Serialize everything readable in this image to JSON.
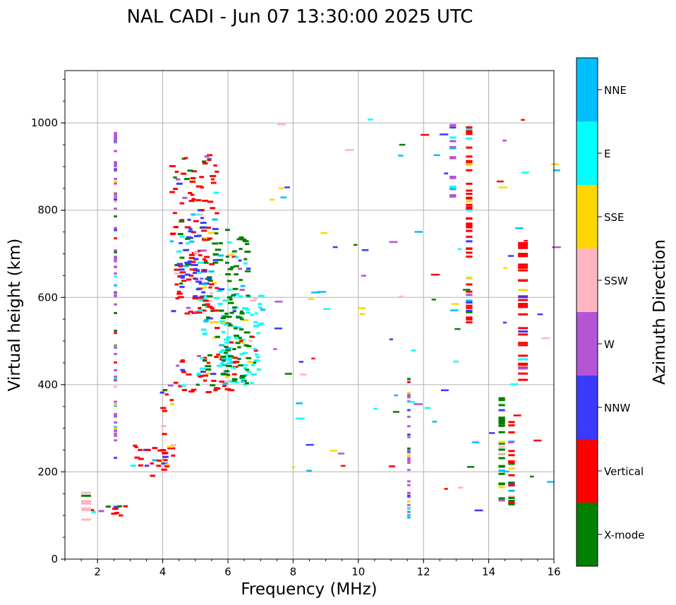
{
  "chart_data": {
    "type": "scatter",
    "title": "NAL CADI - Jun 07 13:30:00 2025 UTC",
    "xlabel": "Frequency (MHz)",
    "ylabel": "Virtual height (km)",
    "xlim": [
      1,
      16
    ],
    "ylim": [
      0,
      1120
    ],
    "xticks": [
      2,
      4,
      6,
      8,
      10,
      12,
      14,
      16
    ],
    "yticks": [
      0,
      200,
      400,
      600,
      800,
      1000
    ],
    "grid": true,
    "colorbar": {
      "label": "Azimuth Direction",
      "categories": [
        {
          "name": "X-mode",
          "color": "#008000"
        },
        {
          "name": "Vertical",
          "color": "#ff0000"
        },
        {
          "name": "NNW",
          "color": "#3a3aff"
        },
        {
          "name": "W",
          "color": "#b455d6"
        },
        {
          "name": "SSW",
          "color": "#ffb6c1"
        },
        {
          "name": "SSE",
          "color": "#ffd700"
        },
        {
          "name": "E",
          "color": "#00ffff"
        },
        {
          "name": "NNE",
          "color": "#00bfff"
        }
      ]
    },
    "echo_regions": [
      {
        "name": "E-layer trace",
        "f": [
          1.5,
          2.9
        ],
        "h": [
          95,
          125
        ],
        "direction": "Vertical"
      },
      {
        "name": "Es / low echoes",
        "f": [
          1.5,
          1.8
        ],
        "h": [
          90,
          180
        ],
        "direction": "SSW"
      },
      {
        "name": "F-layer low trace",
        "f": [
          3.0,
          4.0
        ],
        "h": [
          190,
          265
        ],
        "direction": "Vertical"
      },
      {
        "name": "F-layer rise",
        "f": [
          3.8,
          4.3
        ],
        "h": [
          200,
          400
        ],
        "direction": "Vertical"
      },
      {
        "name": "F-layer main trace",
        "f": [
          4.3,
          6.2
        ],
        "h": [
          380,
          470
        ],
        "direction": "Vertical"
      },
      {
        "name": "O-mode upper",
        "f": [
          5.0,
          7.0
        ],
        "h": [
          400,
          620
        ],
        "direction": "E"
      },
      {
        "name": "X-mode trace",
        "f": [
          5.2,
          6.6
        ],
        "h": [
          390,
          760
        ],
        "direction": "X-mode"
      },
      {
        "name": "Spread F",
        "f": [
          4.2,
          5.6
        ],
        "h": [
          560,
          930
        ],
        "direction": "Vertical"
      },
      {
        "name": "NNW spread",
        "f": [
          4.4,
          5.4
        ],
        "h": [
          600,
          800
        ],
        "direction": "NNW"
      },
      {
        "name": "Interference column",
        "f": [
          2.5,
          2.6
        ],
        "h": [
          230,
          980
        ],
        "direction": "W"
      },
      {
        "name": "Interference column",
        "f": [
          11.5,
          11.6
        ],
        "h": [
          90,
          420
        ],
        "direction": "W"
      },
      {
        "name": "Interference column",
        "f": [
          12.8,
          13.0
        ],
        "h": [
          830,
          1000
        ],
        "direction": "W"
      },
      {
        "name": "Interference column",
        "f": [
          13.3,
          13.5
        ],
        "h": [
          540,
          990
        ],
        "direction": "Vertical"
      },
      {
        "name": "Interference column",
        "f": [
          14.3,
          14.5
        ],
        "h": [
          120,
          370
        ],
        "direction": "X-mode"
      },
      {
        "name": "Interference column",
        "f": [
          14.6,
          14.8
        ],
        "h": [
          120,
          340
        ],
        "direction": "Vertical"
      },
      {
        "name": "Interference column",
        "f": [
          14.9,
          15.2
        ],
        "h": [
          395,
          735
        ],
        "direction": "Vertical"
      }
    ]
  }
}
